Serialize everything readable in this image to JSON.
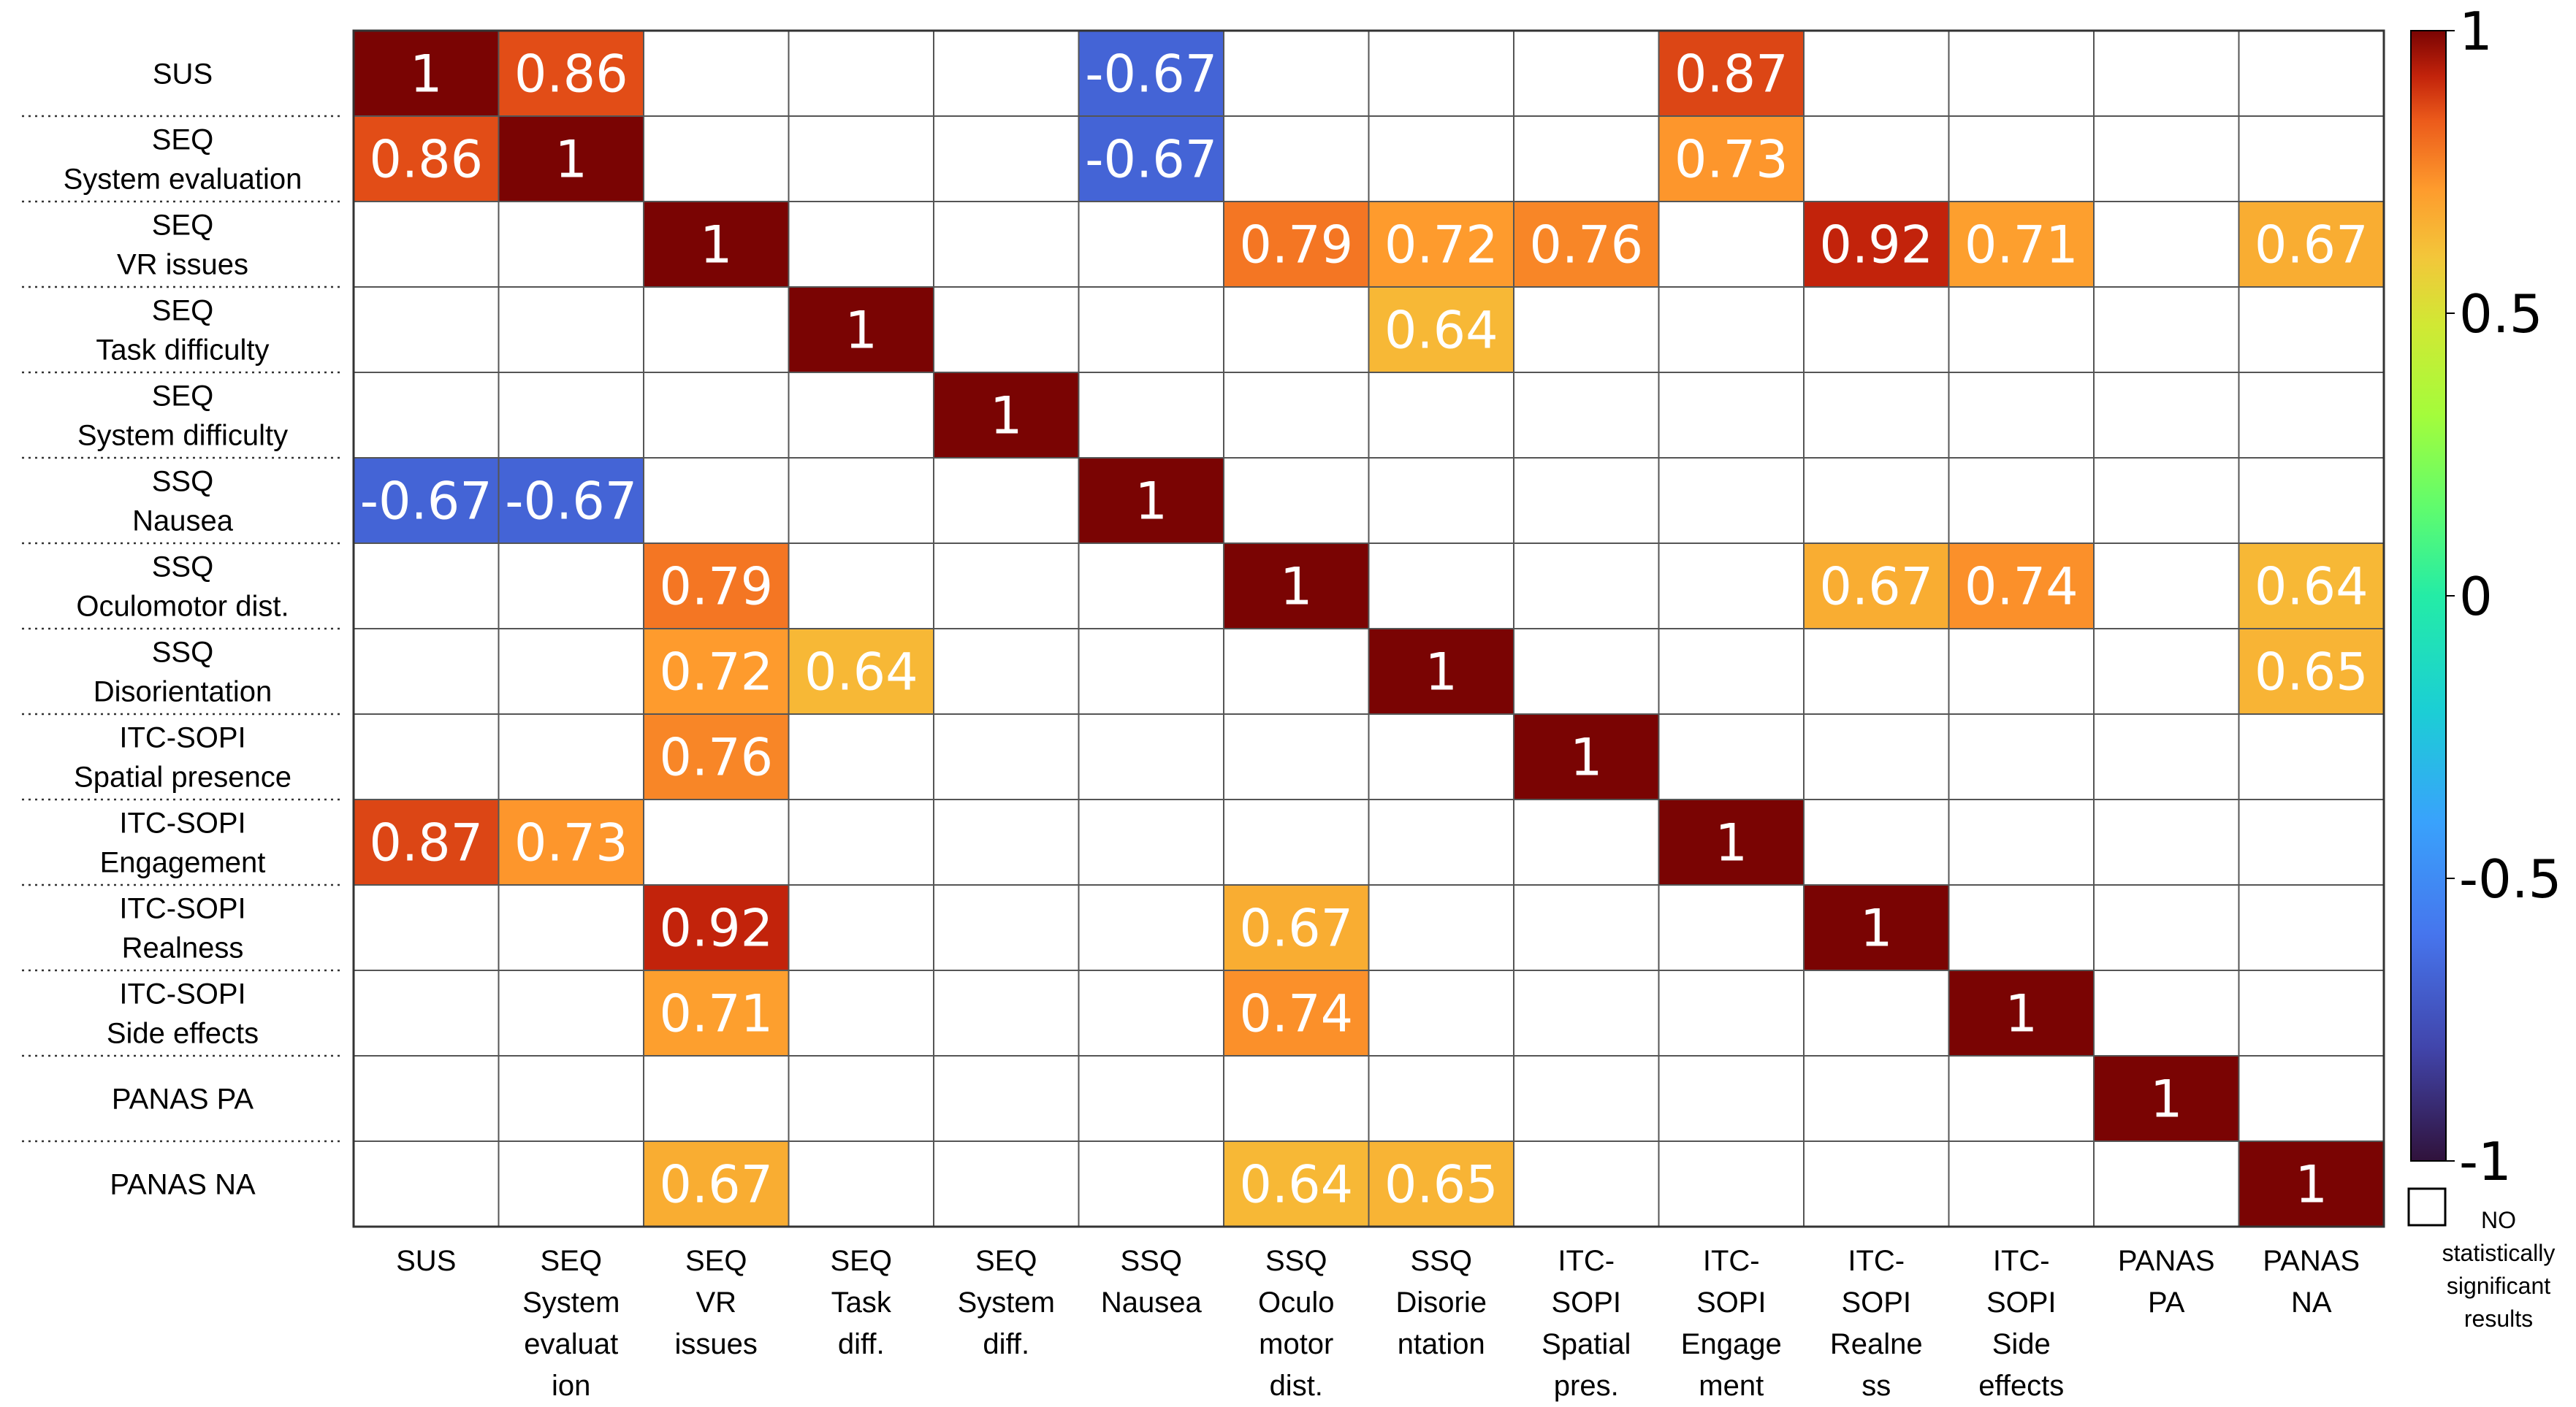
{
  "chart_data": {
    "type": "heatmap",
    "title": "",
    "row_labels": [
      [
        "SUS"
      ],
      [
        "SEQ",
        "System evaluation"
      ],
      [
        "SEQ",
        "VR issues"
      ],
      [
        "SEQ",
        "Task difficulty"
      ],
      [
        "SEQ",
        "System difficulty"
      ],
      [
        "SSQ",
        "Nausea"
      ],
      [
        "SSQ",
        "Oculomotor dist."
      ],
      [
        "SSQ",
        "Disorientation"
      ],
      [
        "ITC-SOPI",
        "Spatial presence"
      ],
      [
        "ITC-SOPI",
        "Engagement"
      ],
      [
        "ITC-SOPI",
        "Realness"
      ],
      [
        "ITC-SOPI",
        "Side effects"
      ],
      [
        "PANAS PA"
      ],
      [
        "PANAS NA"
      ]
    ],
    "col_labels": [
      [
        "SUS"
      ],
      [
        "SEQ",
        "System",
        "evaluat",
        "ion"
      ],
      [
        "SEQ",
        "VR",
        "issues"
      ],
      [
        "SEQ",
        "Task",
        "diff."
      ],
      [
        "SEQ",
        "System",
        "diff."
      ],
      [
        "SSQ",
        "Nausea"
      ],
      [
        "SSQ",
        "Oculo",
        "motor",
        "dist."
      ],
      [
        "SSQ",
        "Disorie",
        "ntation"
      ],
      [
        "ITC-",
        "SOPI",
        "Spatial",
        "pres."
      ],
      [
        "ITC-",
        "SOPI",
        "Engage",
        "ment"
      ],
      [
        "ITC-",
        "SOPI",
        "Realne",
        "ss"
      ],
      [
        "ITC-",
        "SOPI",
        "Side",
        "effects"
      ],
      [
        "PANAS",
        "PA"
      ],
      [
        "PANAS",
        "NA"
      ]
    ],
    "values": [
      [
        1,
        0.86,
        null,
        null,
        null,
        -0.67,
        null,
        null,
        null,
        0.87,
        null,
        null,
        null,
        null
      ],
      [
        0.86,
        1,
        null,
        null,
        null,
        -0.67,
        null,
        null,
        null,
        0.73,
        null,
        null,
        null,
        null
      ],
      [
        null,
        null,
        1,
        null,
        null,
        null,
        0.79,
        0.72,
        0.76,
        null,
        0.92,
        0.71,
        null,
        0.67
      ],
      [
        null,
        null,
        null,
        1,
        null,
        null,
        null,
        0.64,
        null,
        null,
        null,
        null,
        null,
        null
      ],
      [
        null,
        null,
        null,
        null,
        1,
        null,
        null,
        null,
        null,
        null,
        null,
        null,
        null,
        null
      ],
      [
        -0.67,
        -0.67,
        null,
        null,
        null,
        1,
        null,
        null,
        null,
        null,
        null,
        null,
        null,
        null
      ],
      [
        null,
        null,
        0.79,
        null,
        null,
        null,
        1,
        null,
        null,
        null,
        0.67,
        0.74,
        null,
        0.64
      ],
      [
        null,
        null,
        0.72,
        0.64,
        null,
        null,
        null,
        1,
        null,
        null,
        null,
        null,
        null,
        0.65
      ],
      [
        null,
        null,
        0.76,
        null,
        null,
        null,
        null,
        null,
        1,
        null,
        null,
        null,
        null,
        null
      ],
      [
        0.87,
        0.73,
        null,
        null,
        null,
        null,
        null,
        null,
        null,
        1,
        null,
        null,
        null,
        null
      ],
      [
        null,
        null,
        0.92,
        null,
        null,
        null,
        0.67,
        null,
        null,
        null,
        1,
        null,
        null,
        null
      ],
      [
        null,
        null,
        0.71,
        null,
        null,
        null,
        0.74,
        null,
        null,
        null,
        null,
        1,
        null,
        null
      ],
      [
        null,
        null,
        null,
        null,
        null,
        null,
        null,
        null,
        null,
        null,
        null,
        null,
        1,
        null
      ],
      [
        null,
        null,
        0.67,
        null,
        null,
        null,
        0.64,
        0.65,
        null,
        null,
        null,
        null,
        null,
        1
      ]
    ],
    "colorbar": {
      "range": [
        -1,
        1
      ],
      "ticks": [
        "1",
        "0.5",
        "0",
        "-0.5",
        "-1"
      ],
      "colormap": "turbo"
    },
    "legend_no_sig": [
      "NO",
      "statistically",
      "significant",
      "results"
    ]
  }
}
